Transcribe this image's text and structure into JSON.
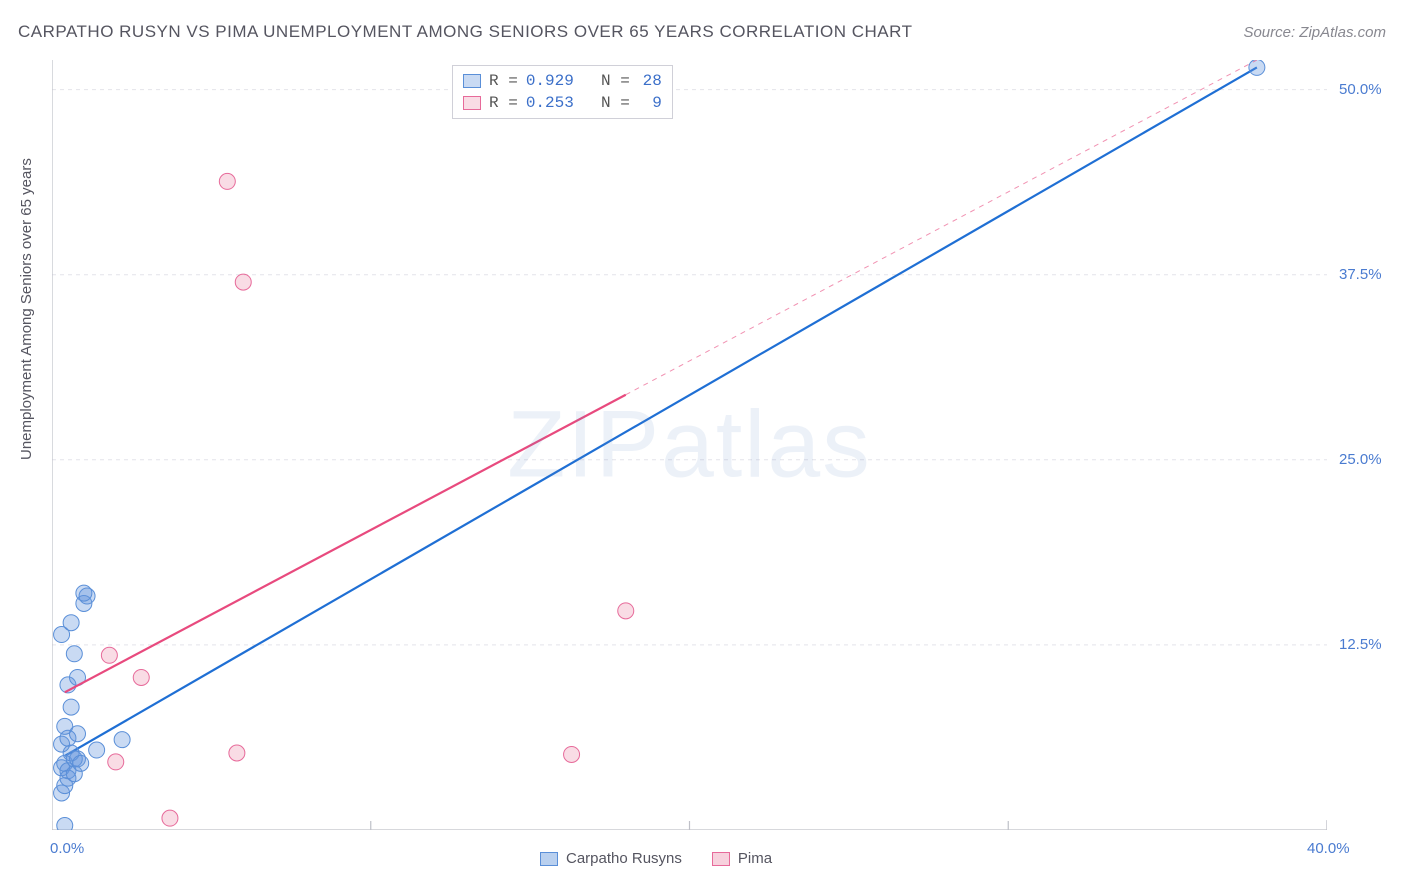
{
  "title": "CARPATHO RUSYN VS PIMA UNEMPLOYMENT AMONG SENIORS OVER 65 YEARS CORRELATION CHART",
  "source": "Source: ZipAtlas.com",
  "ylabel": "Unemployment Among Seniors over 65 years",
  "watermark": "ZIPatlas",
  "chart": {
    "type": "scatter",
    "xlim": [
      0,
      40
    ],
    "ylim": [
      0,
      52
    ],
    "xticks": [
      0,
      10,
      20,
      30,
      40
    ],
    "xtick_labels": [
      "0.0%",
      "",
      "",
      "",
      "40.0%"
    ],
    "yticks": [
      12.5,
      25,
      37.5,
      50
    ],
    "ytick_labels": [
      "12.5%",
      "25.0%",
      "37.5%",
      "50.0%"
    ],
    "grid_color": "#e4e4ea",
    "axis_color": "#bfc0c8",
    "background": "#ffffff",
    "label_color": "#4a7bd0",
    "point_radius": 8,
    "series": [
      {
        "name": "Carpatho Rusyns",
        "fill": "rgba(100,150,220,0.35)",
        "stroke": "#5a8fd8",
        "line_color": "#1f6fd4",
        "line_width": 2.2,
        "R": "0.929",
        "N": "28",
        "regression": {
          "x1": 0.4,
          "y1": 5.0,
          "x2": 37.8,
          "y2": 51.5
        },
        "points": [
          [
            0.3,
            4.2
          ],
          [
            0.4,
            4.5
          ],
          [
            0.5,
            4.0
          ],
          [
            0.6,
            5.2
          ],
          [
            0.7,
            4.8
          ],
          [
            0.3,
            5.8
          ],
          [
            0.5,
            6.2
          ],
          [
            0.8,
            6.5
          ],
          [
            0.4,
            7.0
          ],
          [
            0.6,
            8.3
          ],
          [
            0.5,
            9.8
          ],
          [
            0.8,
            10.3
          ],
          [
            0.7,
            11.9
          ],
          [
            1.0,
            15.3
          ],
          [
            1.1,
            15.8
          ],
          [
            1.0,
            16.0
          ],
          [
            1.4,
            5.4
          ],
          [
            2.2,
            6.1
          ],
          [
            0.3,
            2.5
          ],
          [
            0.4,
            3.0
          ],
          [
            0.5,
            3.5
          ],
          [
            0.7,
            3.8
          ],
          [
            0.8,
            4.8
          ],
          [
            0.9,
            4.5
          ],
          [
            0.3,
            13.2
          ],
          [
            0.4,
            0.3
          ],
          [
            0.6,
            14.0
          ],
          [
            37.8,
            51.5
          ]
        ]
      },
      {
        "name": "Pima",
        "fill": "rgba(235,140,170,0.30)",
        "stroke": "#e76a9a",
        "line_color": "#e84a7e",
        "line_width": 2.2,
        "line_dash_after_x": 18,
        "R": "0.253",
        "N": "9",
        "regression": {
          "x1": 0.4,
          "y1": 9.3,
          "x2": 37.8,
          "y2": 52.0
        },
        "points": [
          [
            1.8,
            11.8
          ],
          [
            2.8,
            10.3
          ],
          [
            2.0,
            4.6
          ],
          [
            3.7,
            0.8
          ],
          [
            5.8,
            5.2
          ],
          [
            6.0,
            37.0
          ],
          [
            5.5,
            43.8
          ],
          [
            16.3,
            5.1
          ],
          [
            18.0,
            14.8
          ]
        ]
      }
    ]
  },
  "legend_bottom": [
    {
      "name": "Carpatho Rusyns",
      "fill": "rgba(100,150,220,0.45)",
      "stroke": "#5a8fd8"
    },
    {
      "name": "Pima",
      "fill": "rgba(235,140,170,0.40)",
      "stroke": "#e76a9a"
    }
  ]
}
